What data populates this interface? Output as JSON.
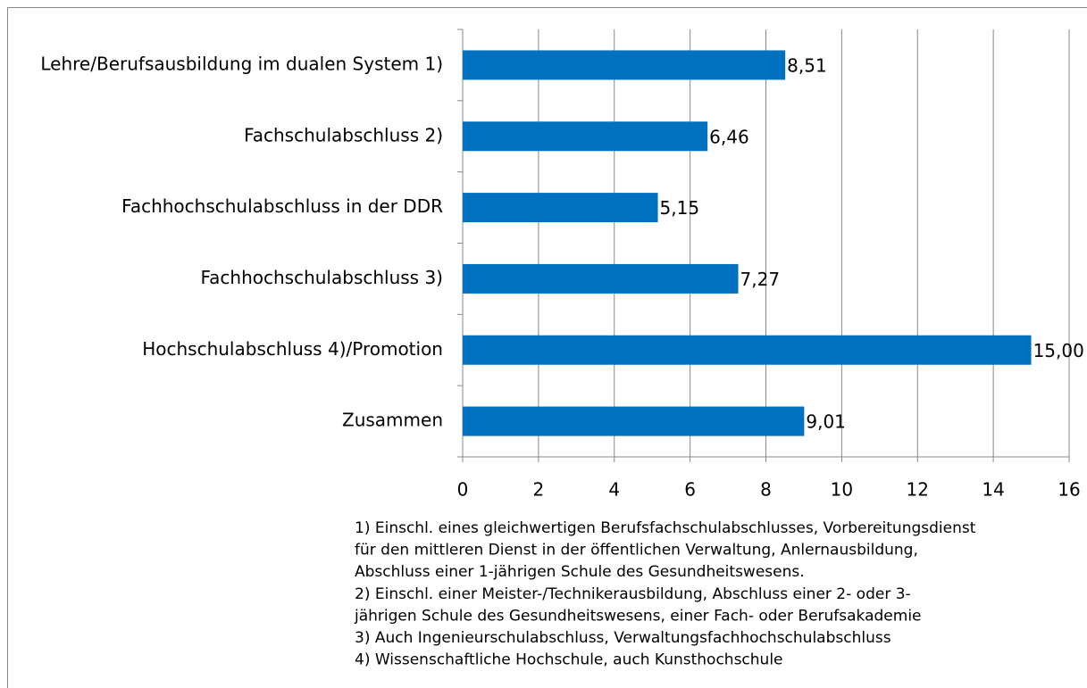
{
  "chart_data": {
    "type": "hbar",
    "categories": [
      "Lehre/Berufsausbildung im dualen System 1)",
      "Fachschulabschluss 2)",
      "Fachhochschulabschluss in der DDR",
      "Fachhochschulabschluss 3)",
      "Hochschulabschluss 4)/Promotion",
      "Zusammen"
    ],
    "values": [
      8.51,
      6.46,
      5.15,
      7.27,
      15.0,
      9.01
    ],
    "value_labels": [
      "8,51",
      "6,46",
      "5,15",
      "7,27",
      "15,00",
      "9,01"
    ],
    "color": "#0070c0",
    "xlim": [
      0,
      16
    ],
    "xticks": [
      0,
      2,
      4,
      6,
      8,
      10,
      12,
      14,
      16
    ],
    "grid": true,
    "footnotes": [
      "1) Einschl. eines gleichwertigen Berufsfachschulabschlusses, Vorbereitungsdienst",
      "für den mittleren Dienst in der öffentlichen Verwaltung, Anlernausbildung,",
      "Abschluss einer 1-jährigen Schule des Gesundheitswesens.",
      "2) Einschl. einer Meister-/Technikerausbildung, Abschluss einer 2- oder 3-",
      "jährigen Schule des Gesundheitswesens, einer Fach- oder Berufsakademie",
      "3) Auch Ingenieurschulabschluss, Verwaltungsfachhochschulabschluss",
      "4) Wissenschaftliche Hochschule, auch Kunsthochschule"
    ]
  }
}
